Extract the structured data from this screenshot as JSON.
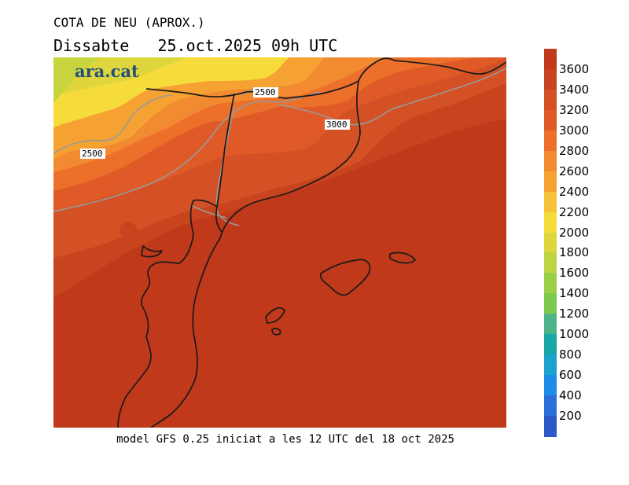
{
  "title": "COTA DE NEU (APROX.)",
  "subtitle": "Dissabte   25.oct.2025 09h UTC",
  "logo": "ara.cat",
  "footer": "model GFS 0.25 iniciat a les 12 UTC del 18 oct 2025",
  "contour_labels": [
    "2500",
    "2500",
    "3000"
  ],
  "legend": {
    "ticks": [
      "3600",
      "3400",
      "3200",
      "3000",
      "2800",
      "2600",
      "2400",
      "2200",
      "2000",
      "1800",
      "1600",
      "1400",
      "1200",
      "1000",
      "800",
      "600",
      "400",
      "200"
    ],
    "colors": [
      "#c0391a",
      "#c64520",
      "#d35124",
      "#e05a27",
      "#ec6f2a",
      "#f18a30",
      "#f5a233",
      "#f7c13a",
      "#f6dc3a",
      "#dfd53d",
      "#bfd443",
      "#9ccf48",
      "#7fc94e",
      "#4db48a",
      "#18a7a7",
      "#1ba2cd",
      "#1d8ce8",
      "#2c6fd9",
      "#2b59c8"
    ]
  },
  "colors": {
    "sea_fill": "#c0391a",
    "coast_line": "#1a1a1a",
    "contour_line": "#999999"
  }
}
